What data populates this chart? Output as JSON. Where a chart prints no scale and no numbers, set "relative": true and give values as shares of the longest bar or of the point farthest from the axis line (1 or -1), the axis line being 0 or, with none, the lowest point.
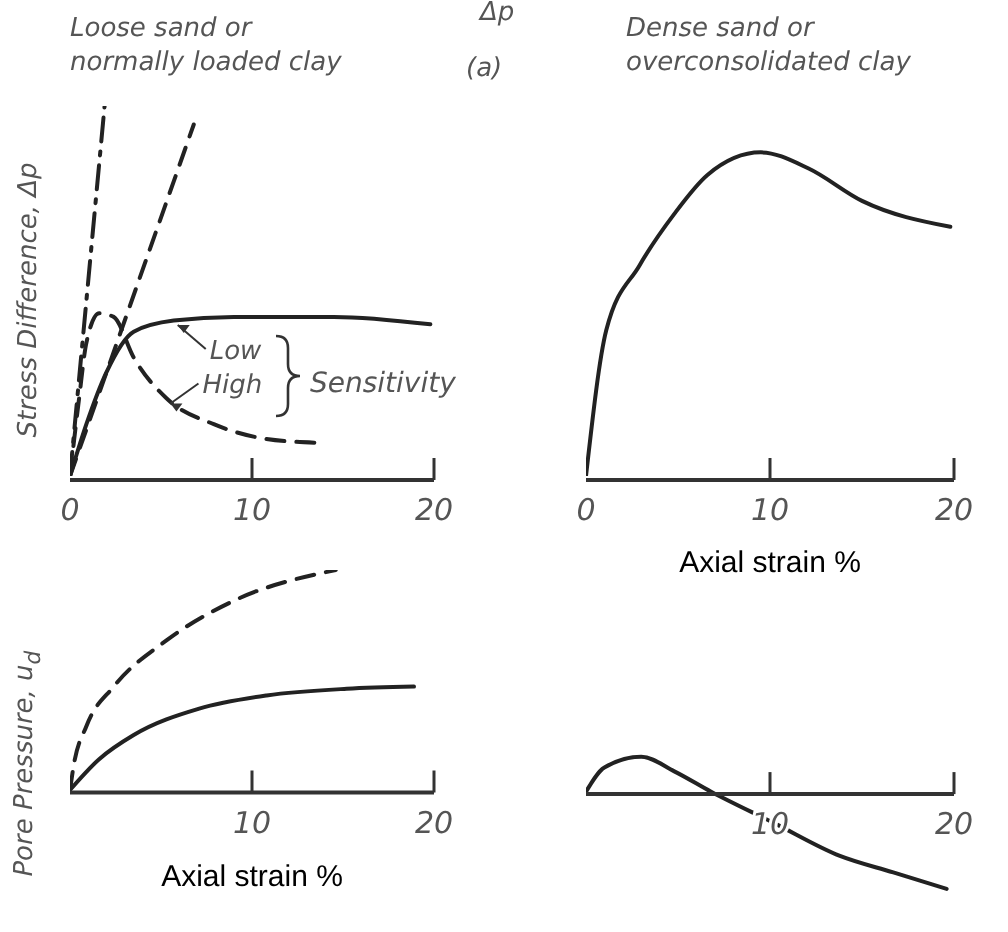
{
  "chart_data": [
    {
      "type": "line",
      "title": "Loose sand or normally loaded clay",
      "ylabel": "Stress Difference, Δp",
      "relative": true,
      "xlim": [
        0,
        20
      ],
      "xticks": [
        0,
        10,
        20
      ],
      "annotations": [
        "Sensitivity",
        "(a)",
        "Δp"
      ],
      "series": [
        {
          "color": "#222222",
          "line_style": "dashdot",
          "x": [
            0,
            1.9
          ],
          "values": [
            0,
            1
          ]
        },
        {
          "color": "#222222",
          "line_style": "dashed",
          "x": [
            0,
            6.8
          ],
          "values": [
            0,
            0.95
          ]
        },
        {
          "name": "Low",
          "color": "#222222",
          "line_style": "solid",
          "x": [
            0,
            0.9,
            2.0,
            3.5,
            5.7,
            9,
            14.5,
            19.8
          ],
          "values": [
            0,
            0.14,
            0.28,
            0.39,
            0.42,
            0.43,
            0.43,
            0.41
          ]
        },
        {
          "name": "High",
          "color": "#222222",
          "line_style": "dashed",
          "x": [
            0,
            0.5,
            0.9,
            1.6,
            2.4,
            3.5,
            5.3,
            7.9,
            10.8,
            13.5
          ],
          "values": [
            0,
            0.21,
            0.36,
            0.44,
            0.43,
            0.32,
            0.21,
            0.14,
            0.1,
            0.09
          ]
        }
      ]
    },
    {
      "type": "line",
      "title": "Dense sand or overconsolidated clay",
      "xlabel": "Axial strain %",
      "relative": true,
      "xlim": [
        0,
        20
      ],
      "xticks": [
        0,
        10,
        20
      ],
      "series": [
        {
          "color": "#222222",
          "line_style": "solid",
          "x": [
            0,
            1.1,
            2.9,
            4.8,
            6.6,
            9.5,
            12.1,
            15,
            19.8
          ],
          "values": [
            0,
            0.45,
            0.65,
            0.81,
            0.93,
            1,
            0.95,
            0.85,
            0.77
          ]
        }
      ]
    },
    {
      "type": "line",
      "ylabel": "Pore Pressure, u$_{d}$",
      "xlabel": "Axial strain %",
      "relative": true,
      "xlim": [
        0,
        20
      ],
      "xticks": [
        10,
        20
      ],
      "series": [
        {
          "color": "#222222",
          "line_style": "dashed",
          "x": [
            0,
            0.2,
            0.9,
            2.4,
            5.3,
            9,
            14.6
          ],
          "values": [
            0,
            0.11,
            0.29,
            0.47,
            0.68,
            0.86,
            1
          ]
        },
        {
          "color": "#222222",
          "line_style": "solid",
          "x": [
            0,
            1.6,
            3.5,
            7.1,
            10.8,
            15.2,
            18.9
          ],
          "values": [
            0,
            0.14,
            0.25,
            0.37,
            0.43,
            0.46,
            0.47
          ]
        }
      ]
    },
    {
      "type": "line",
      "relative": true,
      "xlim": [
        0,
        20
      ],
      "xticks": [
        10,
        20
      ],
      "series": [
        {
          "color": "#222222",
          "line_style": "solid",
          "x": [
            0,
            1,
            3,
            4.8,
            6.8,
            10.2,
            13.8,
            16.7,
            19.6
          ],
          "values": [
            0,
            0.25,
            0.36,
            0.21,
            0,
            -0.32,
            -0.66,
            -0.83,
            -1
          ]
        }
      ]
    }
  ]
}
